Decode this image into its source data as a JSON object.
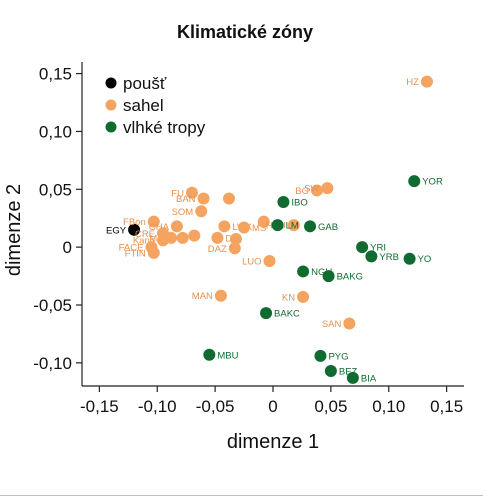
{
  "chart_data": {
    "type": "scatter",
    "title": "Klimatické zóny",
    "xlabel": "dimenze 1",
    "ylabel": "dimenze 2",
    "xlim": [
      -0.165,
      0.165
    ],
    "ylim": [
      -0.12,
      0.16
    ],
    "xticks": [
      -0.15,
      -0.1,
      -0.05,
      0,
      0.05,
      0.1,
      0.15
    ],
    "xtick_labels": [
      "-0,15",
      "-0,10",
      "-0,05",
      "0",
      "0,05",
      "0,10",
      "0,15"
    ],
    "yticks": [
      -0.1,
      -0.05,
      0,
      0.05,
      0.1,
      0.15
    ],
    "ytick_labels": [
      "-0,10",
      "-0,05",
      "0",
      "0,05",
      "0,10",
      "0,15"
    ],
    "grid": false,
    "legend_position": "top-left",
    "series": [
      {
        "name": "poušť",
        "color": "#000000",
        "label_color": "#000000",
        "points": [
          {
            "label": "EGY",
            "x": -0.12,
            "y": 0.015,
            "label_side": "left"
          }
        ]
      },
      {
        "name": "sahel",
        "color": "#f4a460",
        "label_color": "#e8914f",
        "points": [
          {
            "label": "HZ",
            "x": 0.133,
            "y": 0.143,
            "label_side": "left"
          },
          {
            "label": "FU",
            "x": -0.07,
            "y": 0.047,
            "label_side": "left"
          },
          {
            "label": "BAN",
            "x": -0.06,
            "y": 0.042,
            "label_side": "left"
          },
          {
            "label": "",
            "x": -0.038,
            "y": 0.042,
            "label_side": "right"
          },
          {
            "label": "SOM",
            "x": -0.062,
            "y": 0.031,
            "label_side": "left"
          },
          {
            "label": "FBon",
            "x": -0.103,
            "y": 0.022,
            "label_side": "left"
          },
          {
            "label": "CHA",
            "x": -0.083,
            "y": 0.018,
            "label_side": "left"
          },
          {
            "label": "CRE",
            "x": -0.095,
            "y": 0.012,
            "label_side": "left"
          },
          {
            "label": "Mrt",
            "x": -0.088,
            "y": 0.008,
            "label_side": "left"
          },
          {
            "label": "Kano",
            "x": -0.095,
            "y": 0.006,
            "label_side": "left"
          },
          {
            "label": "",
            "x": -0.078,
            "y": 0.008,
            "label_side": "right"
          },
          {
            "label": "FACE",
            "x": -0.105,
            "y": 0.0,
            "label_side": "left"
          },
          {
            "label": "FTIN",
            "x": -0.103,
            "y": -0.005,
            "label_side": "left"
          },
          {
            "label": "",
            "x": -0.068,
            "y": 0.01,
            "label_side": "right"
          },
          {
            "label": "LWK",
            "x": -0.042,
            "y": 0.018,
            "label_side": "right"
          },
          {
            "label": "DN",
            "x": -0.048,
            "y": 0.008,
            "label_side": "right"
          },
          {
            "label": "",
            "x": -0.032,
            "y": 0.007,
            "label_side": "right"
          },
          {
            "label": "DAZ",
            "x": -0.033,
            "y": -0.001,
            "label_side": "left"
          },
          {
            "label": "MS",
            "x": -0.025,
            "y": 0.017,
            "label_side": "right"
          },
          {
            "label": "",
            "x": -0.008,
            "y": 0.022,
            "label_side": "right"
          },
          {
            "label": "HAU",
            "x": 0.018,
            "y": 0.019,
            "label_side": "left"
          },
          {
            "label": "BO",
            "x": 0.038,
            "y": 0.049,
            "label_side": "left"
          },
          {
            "label": "SW",
            "x": 0.047,
            "y": 0.051,
            "label_side": "left"
          },
          {
            "label": "LUO",
            "x": -0.003,
            "y": -0.012,
            "label_side": "left"
          },
          {
            "label": "MAN",
            "x": -0.045,
            "y": -0.042,
            "label_side": "left"
          },
          {
            "label": "KN",
            "x": 0.026,
            "y": -0.043,
            "label_side": "left"
          },
          {
            "label": "SAN",
            "x": 0.066,
            "y": -0.066,
            "label_side": "left"
          }
        ]
      },
      {
        "name": "vlhké tropy",
        "color": "#0f6b2f",
        "label_color": "#0f6b2f",
        "points": [
          {
            "label": "YOR",
            "x": 0.122,
            "y": 0.057,
            "label_side": "right"
          },
          {
            "label": "IBO",
            "x": 0.009,
            "y": 0.039,
            "label_side": "right"
          },
          {
            "label": "LM",
            "x": 0.004,
            "y": 0.019,
            "label_side": "right"
          },
          {
            "label": "GAB",
            "x": 0.032,
            "y": 0.018,
            "label_side": "right"
          },
          {
            "label": "YRI",
            "x": 0.077,
            "y": 0.0,
            "label_side": "right"
          },
          {
            "label": "YRB",
            "x": 0.085,
            "y": -0.008,
            "label_side": "right"
          },
          {
            "label": "YO",
            "x": 0.118,
            "y": -0.01,
            "label_side": "right"
          },
          {
            "label": "NGU",
            "x": 0.026,
            "y": -0.021,
            "label_side": "right"
          },
          {
            "label": "BAKG",
            "x": 0.048,
            "y": -0.025,
            "label_side": "right"
          },
          {
            "label": "BAKC",
            "x": -0.006,
            "y": -0.057,
            "label_side": "right"
          },
          {
            "label": "MBU",
            "x": -0.055,
            "y": -0.093,
            "label_side": "right"
          },
          {
            "label": "PYG",
            "x": 0.041,
            "y": -0.094,
            "label_side": "right"
          },
          {
            "label": "BEZ",
            "x": 0.05,
            "y": -0.107,
            "label_side": "right"
          },
          {
            "label": "BIA",
            "x": 0.069,
            "y": -0.113,
            "label_side": "right"
          }
        ]
      }
    ]
  }
}
